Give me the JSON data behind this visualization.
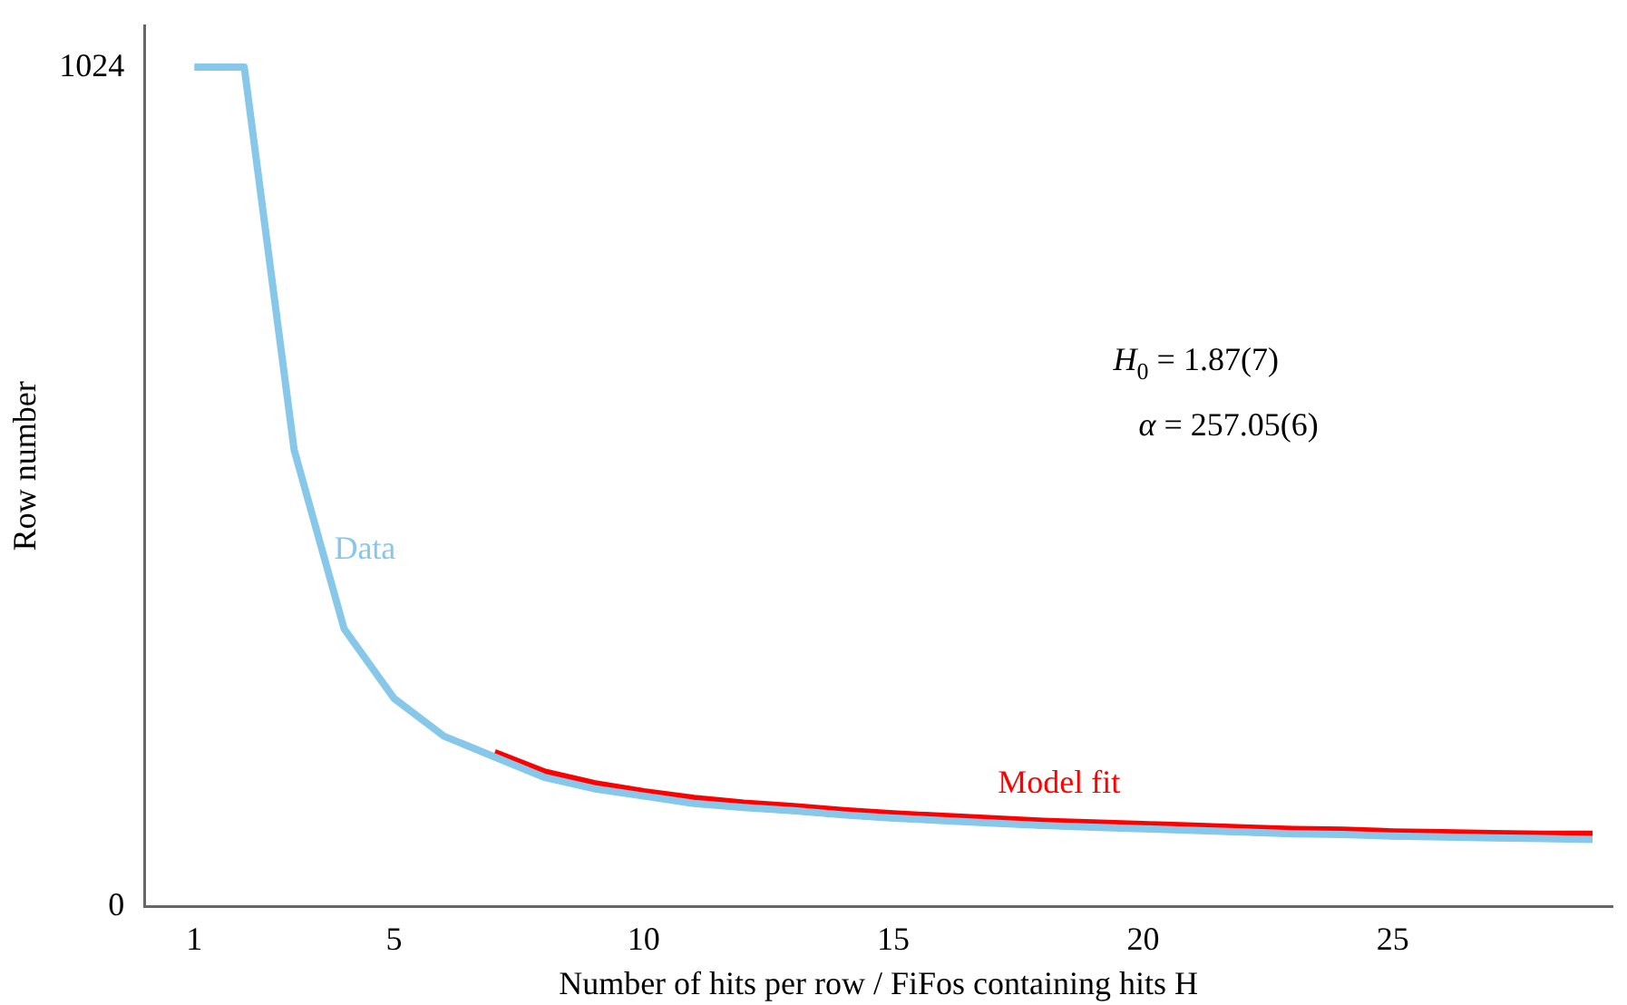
{
  "chart_data": {
    "type": "line",
    "xlabel": "Number of hits per row / FiFos containing hits H",
    "ylabel": "Row number",
    "xlim": [
      0,
      29.4
    ],
    "xticks": [
      1,
      5,
      10,
      15,
      20,
      25
    ],
    "ylim": [
      0,
      1075
    ],
    "yticks": [
      0,
      1024
    ],
    "grid": false,
    "legend": false,
    "marker": "none",
    "line_style": "solid",
    "series": [
      {
        "name": "Data",
        "color": "#87c8ea",
        "x": [
          1,
          2,
          3,
          4,
          5,
          6,
          7,
          8,
          9,
          10,
          11,
          12,
          13,
          14,
          15,
          16,
          17,
          18,
          19,
          20,
          21,
          22,
          23,
          24,
          25,
          26,
          27,
          28,
          29
        ],
        "values": [
          1024,
          1024,
          557,
          339,
          254,
          208,
          183,
          158,
          144,
          135,
          126,
          121,
          117,
          112,
          108,
          105,
          102,
          99,
          97,
          95,
          93,
          91,
          89,
          88,
          86,
          85,
          84,
          83,
          82
        ]
      },
      {
        "name": "Model fit",
        "color": "#ff0000",
        "x": [
          7,
          8,
          9,
          10,
          11,
          12,
          13,
          14,
          15,
          16,
          17,
          18,
          19,
          20,
          21,
          22,
          23,
          24,
          25,
          26,
          27,
          28,
          29
        ],
        "values": [
          186,
          162,
          148,
          138,
          130,
          124,
          120,
          115,
          111,
          108,
          105,
          102,
          100,
          98,
          96,
          94,
          92,
          91,
          89,
          88,
          87,
          86,
          86
        ]
      }
    ],
    "annotations": [
      "H$_{0}$ = 1.87(7)",
      "α = 257.05(6)"
    ]
  }
}
